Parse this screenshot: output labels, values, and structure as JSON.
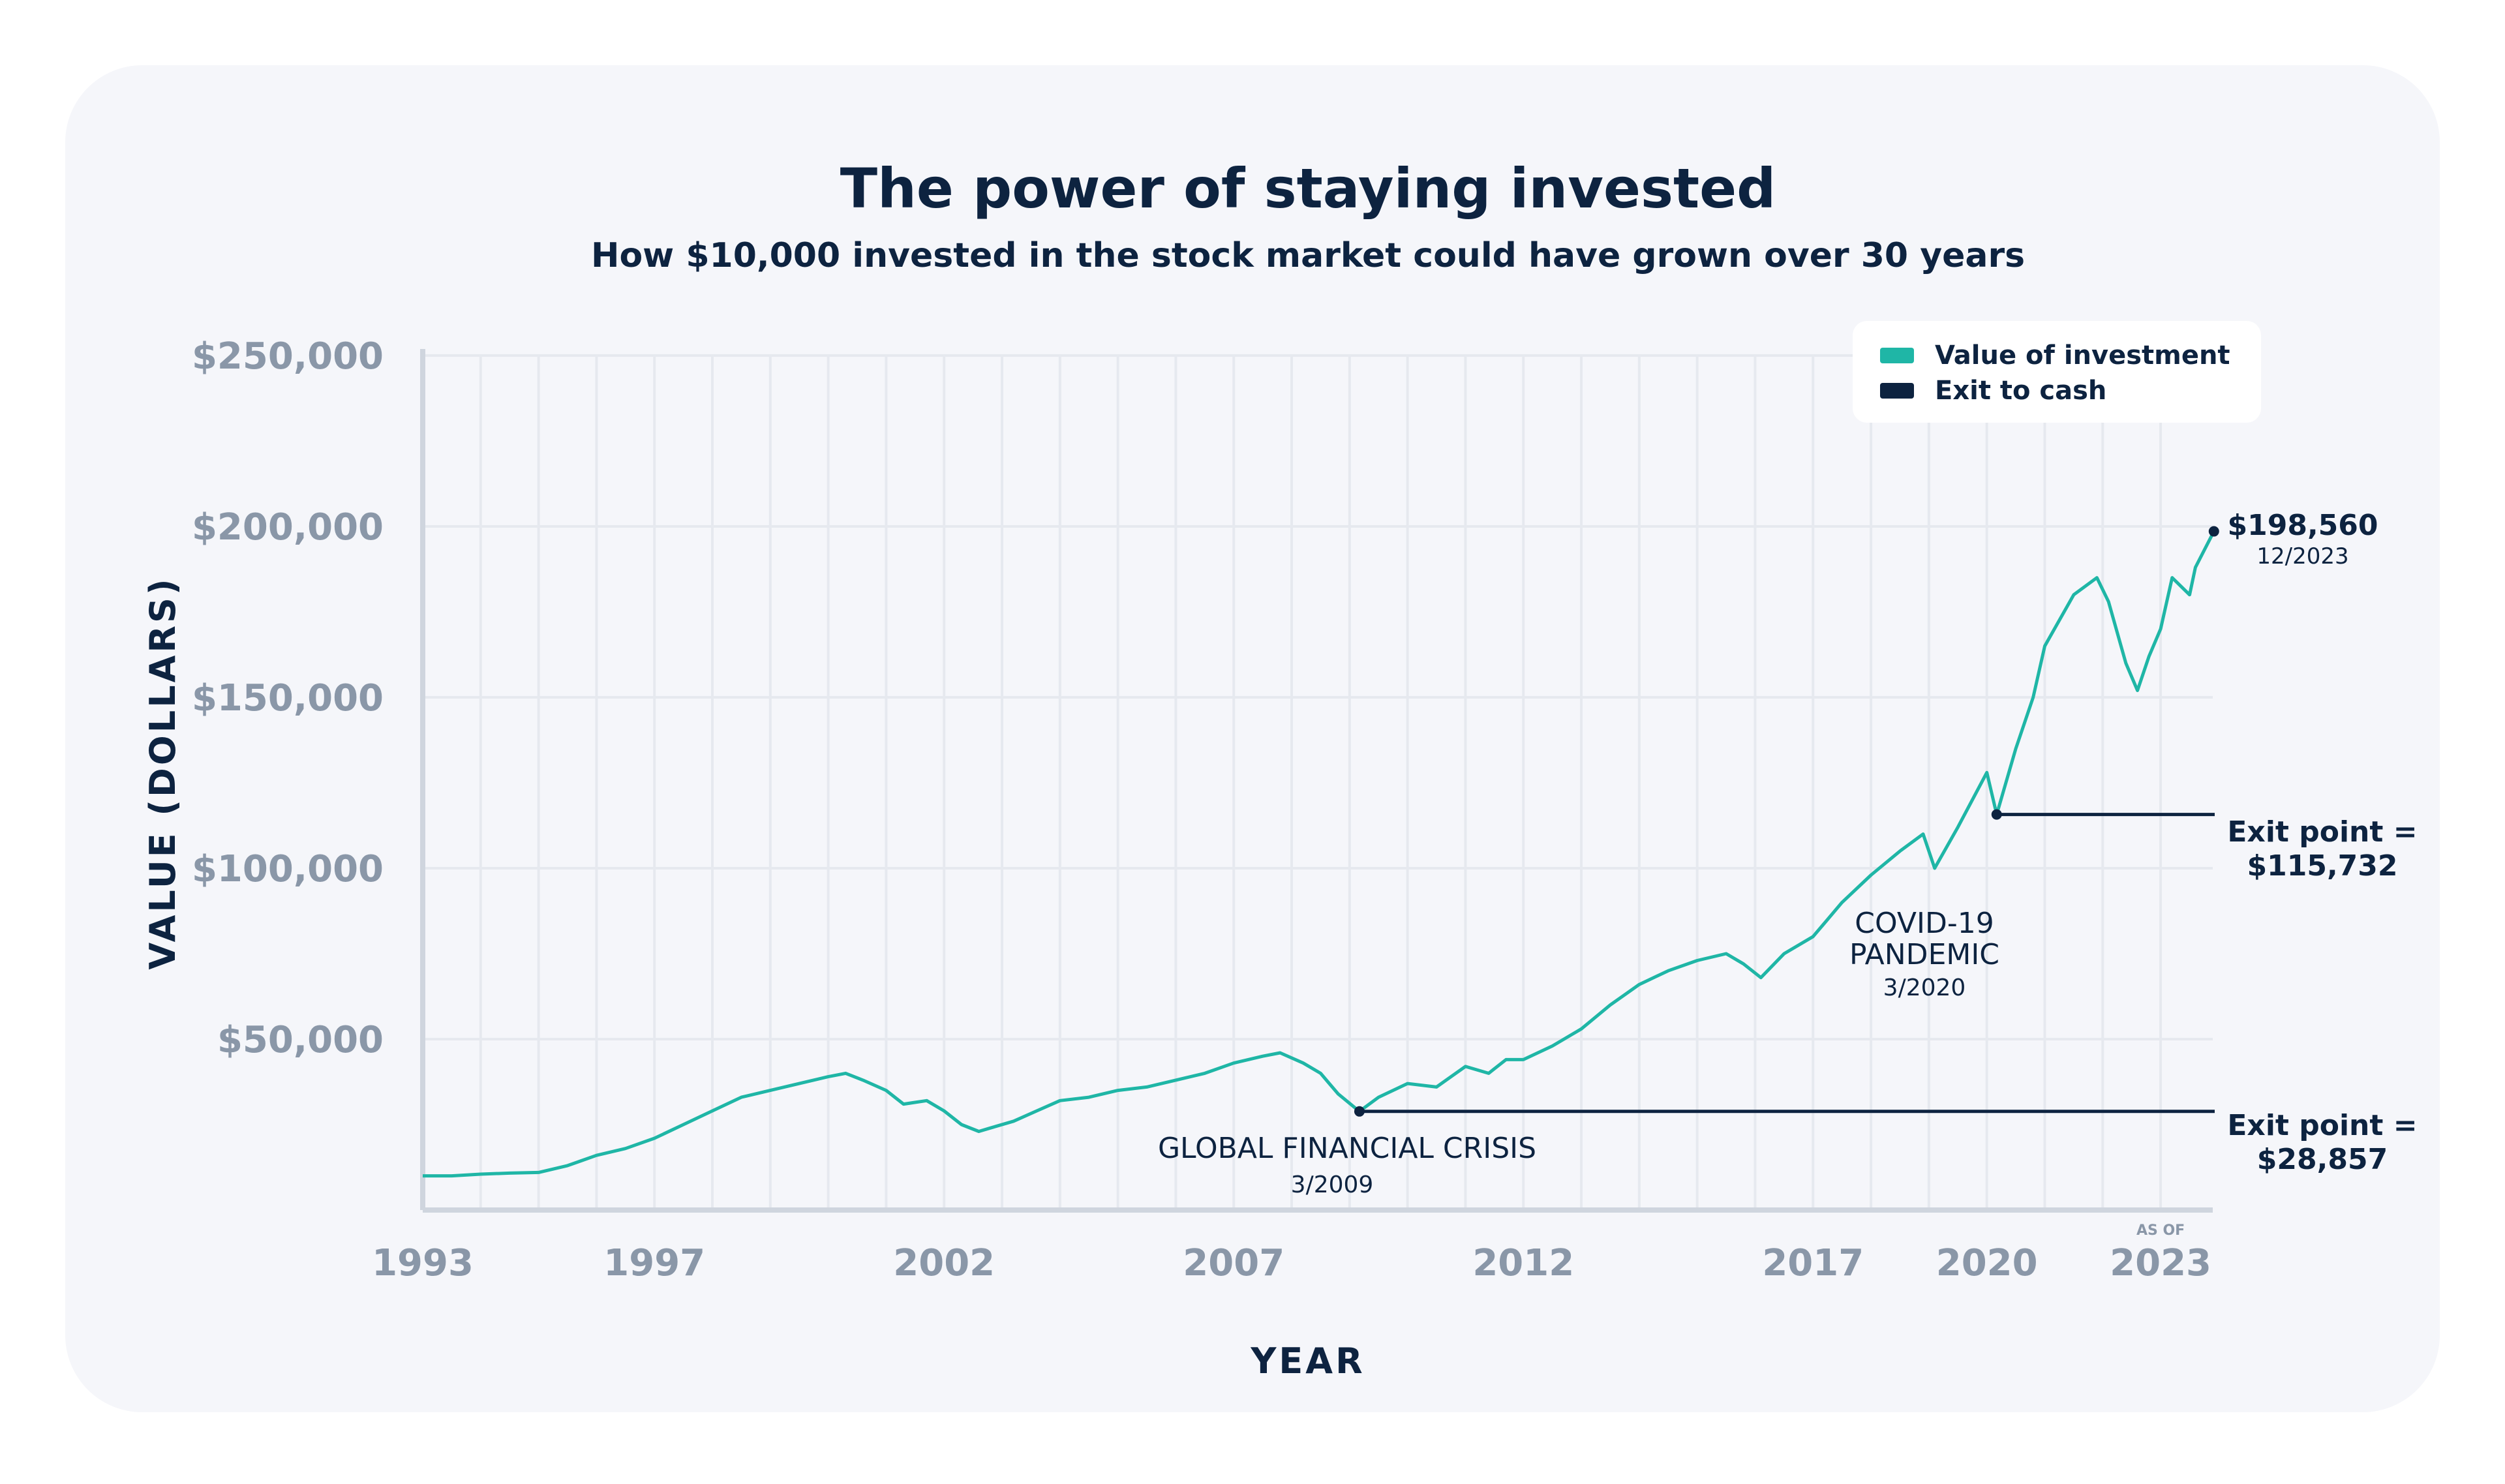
{
  "title": "The power of staying invested",
  "subtitle": "How $10,000 invested in the stock market could have grown over 30 years",
  "chart_data": {
    "type": "line",
    "title": "The power of staying invested",
    "subtitle": "How $10,000 invested in the stock market could have grown over 30 years",
    "xlabel": "YEAR",
    "ylabel": "VALUE (DOLLARS)",
    "xlim": [
      1993,
      2023.9
    ],
    "ylim": [
      0,
      250000
    ],
    "x_ticks": [
      {
        "value": 1993,
        "label": "1993"
      },
      {
        "value": 1997,
        "label": "1997"
      },
      {
        "value": 2002,
        "label": "2002"
      },
      {
        "value": 2007,
        "label": "2007"
      },
      {
        "value": 2012,
        "label": "2012"
      },
      {
        "value": 2017,
        "label": "2017"
      },
      {
        "value": 2020,
        "label": "2020"
      },
      {
        "value": 2023,
        "label": "2023"
      }
    ],
    "x_tick_note": "AS OF",
    "y_ticks": [
      {
        "value": 50000,
        "label": "$50,000"
      },
      {
        "value": 100000,
        "label": "$100,000"
      },
      {
        "value": 150000,
        "label": "$150,000"
      },
      {
        "value": 200000,
        "label": "$200,000"
      },
      {
        "value": 250000,
        "label": "$250,000"
      }
    ],
    "grid": true,
    "legend_position": "top-right",
    "colors": {
      "investment": "#1fb6a6",
      "exit": "#0d2340",
      "axis": "#cfd5de",
      "grid": "#e6e9ef",
      "tick_text": "#8a97a8"
    },
    "series": [
      {
        "name": "Value of investment",
        "x": [
          1993.0,
          1993.5,
          1994.0,
          1994.5,
          1995.0,
          1995.5,
          1996.0,
          1996.5,
          1997.0,
          1997.5,
          1998.0,
          1998.5,
          1999.0,
          1999.5,
          2000.0,
          2000.3,
          2000.6,
          2001.0,
          2001.3,
          2001.7,
          2002.0,
          2002.3,
          2002.6,
          2002.8,
          2003.2,
          2003.6,
          2004.0,
          2004.5,
          2005.0,
          2005.5,
          2006.0,
          2006.5,
          2007.0,
          2007.5,
          2007.8,
          2008.2,
          2008.5,
          2008.8,
          2009.17,
          2009.5,
          2010.0,
          2010.5,
          2011.0,
          2011.4,
          2011.7,
          2012.0,
          2012.5,
          2013.0,
          2013.5,
          2014.0,
          2014.5,
          2015.0,
          2015.5,
          2015.8,
          2016.1,
          2016.5,
          2017.0,
          2017.5,
          2018.0,
          2018.5,
          2018.9,
          2019.1,
          2019.5,
          2020.0,
          2020.17,
          2020.5,
          2020.8,
          2021.0,
          2021.5,
          2021.9,
          2022.1,
          2022.4,
          2022.6,
          2022.8,
          2023.0,
          2023.2,
          2023.5,
          2023.6,
          2023.92
        ],
        "values": [
          10000,
          10000,
          10500,
          10800,
          11000,
          13000,
          16000,
          18000,
          21000,
          25000,
          29000,
          33000,
          35000,
          37000,
          39000,
          40000,
          38000,
          35000,
          31000,
          32000,
          29000,
          25000,
          23000,
          24000,
          26000,
          29000,
          32000,
          33000,
          35000,
          36000,
          38000,
          40000,
          43000,
          45000,
          46000,
          43000,
          40000,
          34000,
          28857,
          33000,
          37000,
          36000,
          42000,
          40000,
          44000,
          44000,
          48000,
          53000,
          60000,
          66000,
          70000,
          73000,
          75000,
          72000,
          68000,
          75000,
          80000,
          90000,
          98000,
          105000,
          110000,
          100000,
          112000,
          128000,
          115732,
          135000,
          150000,
          165000,
          180000,
          185000,
          178000,
          160000,
          152000,
          162000,
          170000,
          185000,
          180000,
          188000,
          198560
        ]
      },
      {
        "name": "Exit to cash",
        "values": [
          28857,
          115732
        ]
      }
    ],
    "annotations": [
      {
        "event": "GLOBAL FINANCIAL CRISIS",
        "date": "3/2009",
        "x": 2009.17,
        "y": 28857,
        "label_line1": "Exit point =",
        "label_line2": "$28,857"
      },
      {
        "event": "COVID-19 PANDEMIC",
        "event_line1": "COVID-19",
        "event_line2": "PANDEMIC",
        "date": "3/2020",
        "x": 2020.17,
        "y": 115732,
        "label_line1": "Exit point =",
        "label_line2": "$115,732"
      },
      {
        "x": 2023.92,
        "y": 198560,
        "label_line1": "$198,560",
        "label_line2": "12/2023"
      }
    ]
  }
}
